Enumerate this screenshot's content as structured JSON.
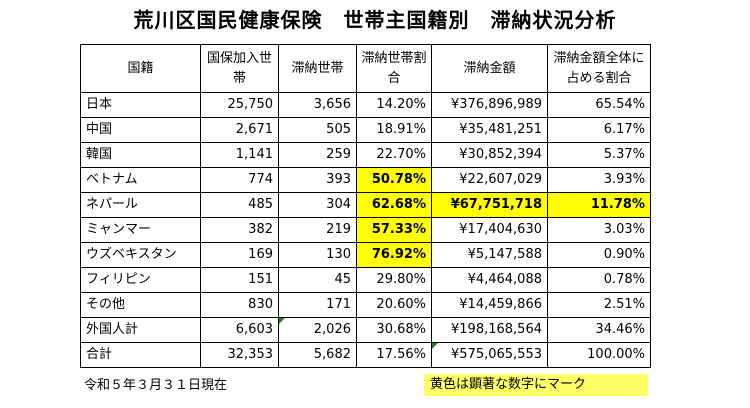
{
  "title": "荒川区国民健康保険　世帯主国籍別　滞納状況分析",
  "table": {
    "headers": {
      "nationality": "国籍",
      "households": "国保加入世帯",
      "delinquent": "滞納世帯",
      "delinquent_rate": "滞納世帯割合",
      "amount": "滞納金額",
      "amount_share": "滞納金額全体に占める割合"
    },
    "rows": [
      {
        "nationality": "日本",
        "households": "25,750",
        "delinquent": "3,656",
        "delinquent_rate": "14.20%",
        "amount": "¥376,896,989",
        "amount_share": "65.54%"
      },
      {
        "nationality": "中国",
        "households": "2,671",
        "delinquent": "505",
        "delinquent_rate": "18.91%",
        "amount": "¥35,481,251",
        "amount_share": "6.17%"
      },
      {
        "nationality": "韓国",
        "households": "1,141",
        "delinquent": "259",
        "delinquent_rate": "22.70%",
        "amount": "¥30,852,394",
        "amount_share": "5.37%"
      },
      {
        "nationality": "ベトナム",
        "households": "774",
        "delinquent": "393",
        "delinquent_rate": "50.78%",
        "amount": "¥22,607,029",
        "amount_share": "3.93%"
      },
      {
        "nationality": "ネパール",
        "households": "485",
        "delinquent": "304",
        "delinquent_rate": "62.68%",
        "amount": "¥67,751,718",
        "amount_share": "11.78%"
      },
      {
        "nationality": "ミャンマー",
        "households": "382",
        "delinquent": "219",
        "delinquent_rate": "57.33%",
        "amount": "¥17,404,630",
        "amount_share": "3.03%"
      },
      {
        "nationality": "ウズベキスタン",
        "households": "169",
        "delinquent": "130",
        "delinquent_rate": "76.92%",
        "amount": "¥5,147,588",
        "amount_share": "0.90%"
      },
      {
        "nationality": "フィリピン",
        "households": "151",
        "delinquent": "45",
        "delinquent_rate": "29.80%",
        "amount": "¥4,464,088",
        "amount_share": "0.78%"
      },
      {
        "nationality": "その他",
        "households": "830",
        "delinquent": "171",
        "delinquent_rate": "20.60%",
        "amount": "¥14,459,866",
        "amount_share": "2.51%"
      },
      {
        "nationality": "外国人計",
        "households": "6,603",
        "delinquent": "2,026",
        "delinquent_rate": "30.68%",
        "amount": "¥198,168,564",
        "amount_share": "34.46%"
      },
      {
        "nationality": "合計",
        "households": "32,353",
        "delinquent": "5,682",
        "delinquent_rate": "17.56%",
        "amount": "¥575,065,553",
        "amount_share": "100.00%"
      }
    ]
  },
  "footnote": "令和５年３月３１日現在",
  "legend": "黄色は顕著な数字にマーク",
  "colors": {
    "highlight": "#ffff00",
    "legend_background": "#ffff66",
    "error_marker": "#2e7d32"
  }
}
